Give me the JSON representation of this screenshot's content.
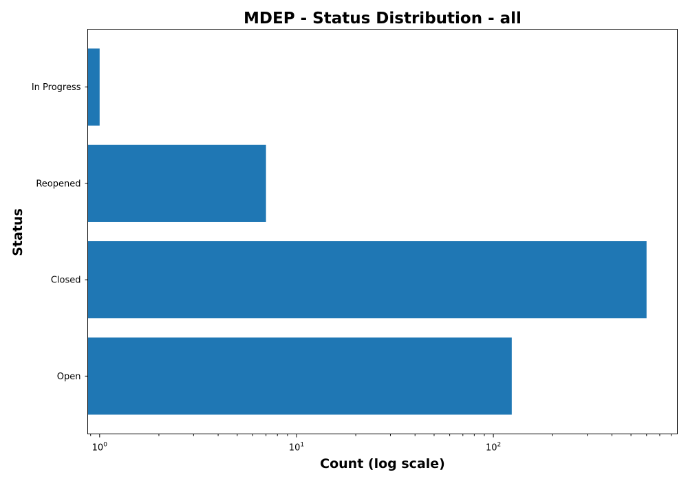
{
  "chart_data": {
    "type": "bar",
    "orientation": "horizontal",
    "title": "MDEP - Status Distribution - all",
    "xlabel": "Count (log scale)",
    "ylabel": "Status",
    "x_scale": "log",
    "xlim": [
      0.87,
      860
    ],
    "categories": [
      "In Progress",
      "Reopened",
      "Closed",
      "Open"
    ],
    "values": [
      1,
      7,
      600,
      124
    ],
    "x_ticks": [
      {
        "base": "10",
        "exp": "0"
      },
      {
        "base": "10",
        "exp": "1"
      },
      {
        "base": "10",
        "exp": "2"
      }
    ],
    "bar_color": "#1f77b4",
    "grid": false,
    "legend": "none"
  }
}
